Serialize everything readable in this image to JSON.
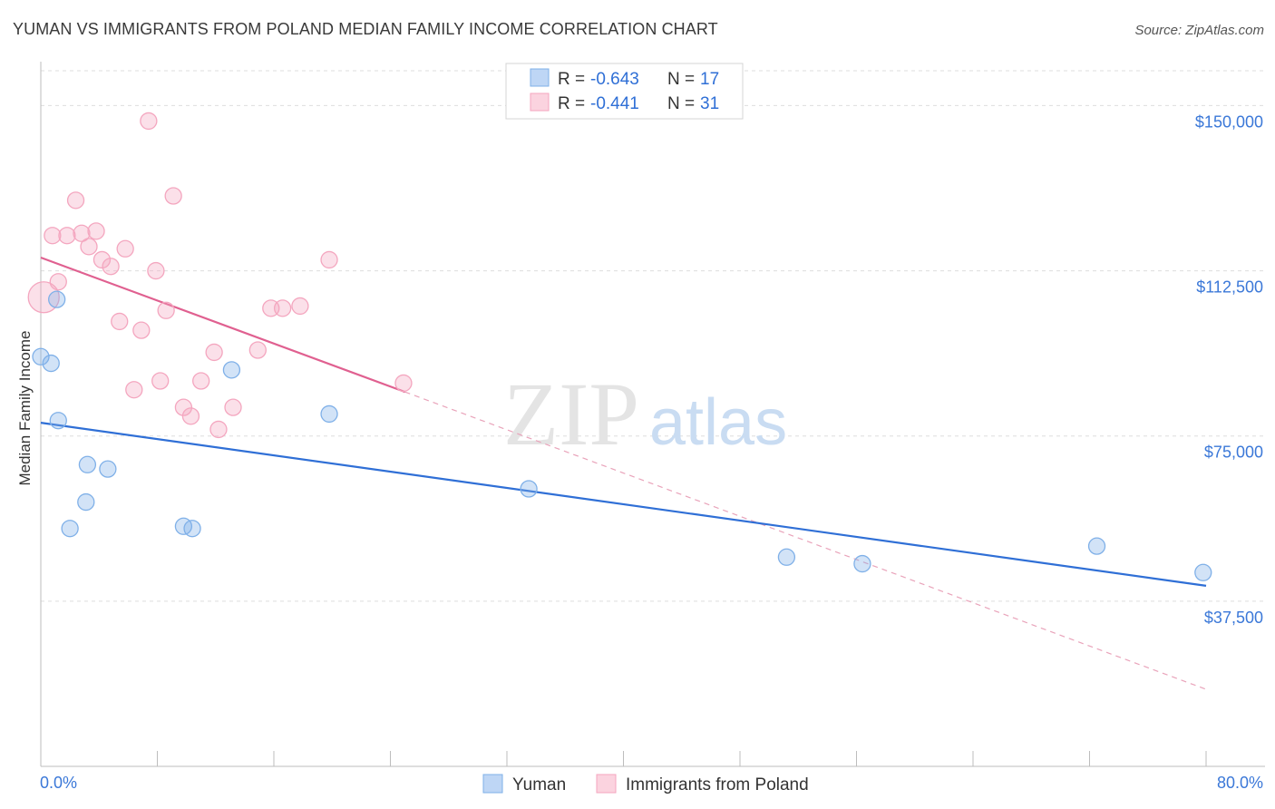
{
  "title": "YUMAN VS IMMIGRANTS FROM POLAND MEDIAN FAMILY INCOME CORRELATION CHART",
  "source": "Source: ZipAtlas.com",
  "watermark": {
    "zip": "ZIP",
    "atlas": "atlas"
  },
  "chart_data": {
    "type": "scatter",
    "title": "YUMAN VS IMMIGRANTS FROM POLAND MEDIAN FAMILY INCOME CORRELATION CHART",
    "xlabel": "",
    "ylabel": "Median Family Income",
    "xlim": [
      0,
      80
    ],
    "ylim": [
      0,
      157500
    ],
    "x_tick_labels": [
      "0.0%",
      "80.0%"
    ],
    "y_ticks": [
      37500,
      75000,
      112500,
      150000
    ],
    "y_tick_labels": [
      "$37,500",
      "$75,000",
      "$112,500",
      "$150,000"
    ],
    "grid": true,
    "legend_position": "top-center",
    "series": [
      {
        "name": "Yuman",
        "color": "#7fb0e8",
        "line_color": "#2f6fd6",
        "R": "-0.643",
        "N": "17",
        "points": [
          [
            0.0,
            93000
          ],
          [
            0.7,
            91500
          ],
          [
            1.1,
            106000
          ],
          [
            1.2,
            78500
          ],
          [
            2.0,
            54000
          ],
          [
            3.1,
            60000
          ],
          [
            3.2,
            68500
          ],
          [
            4.6,
            67500
          ],
          [
            9.8,
            54500
          ],
          [
            10.4,
            54000
          ],
          [
            13.1,
            90000
          ],
          [
            19.8,
            80000
          ],
          [
            33.5,
            63000
          ],
          [
            51.2,
            47500
          ],
          [
            56.4,
            46000
          ],
          [
            72.5,
            50000
          ],
          [
            79.8,
            44000
          ]
        ],
        "trend": {
          "x": [
            0,
            80
          ],
          "y": [
            78000,
            41000
          ]
        }
      },
      {
        "name": "Immigrants from Poland",
        "color": "#f4a6bf",
        "line_color": "#e06090",
        "R": "-0.441",
        "N": "31",
        "points": [
          [
            0.2,
            106500
          ],
          [
            0.8,
            120500
          ],
          [
            1.2,
            110000
          ],
          [
            1.8,
            120500
          ],
          [
            2.4,
            128500
          ],
          [
            2.8,
            121000
          ],
          [
            3.3,
            118000
          ],
          [
            3.8,
            121500
          ],
          [
            4.2,
            115000
          ],
          [
            4.8,
            113500
          ],
          [
            5.4,
            101000
          ],
          [
            5.8,
            117500
          ],
          [
            6.4,
            85500
          ],
          [
            6.9,
            99000
          ],
          [
            7.4,
            146500
          ],
          [
            7.9,
            112500
          ],
          [
            8.2,
            87500
          ],
          [
            8.6,
            103500
          ],
          [
            9.1,
            129500
          ],
          [
            9.8,
            81500
          ],
          [
            10.3,
            79500
          ],
          [
            11.0,
            87500
          ],
          [
            11.9,
            94000
          ],
          [
            12.2,
            76500
          ],
          [
            13.2,
            81500
          ],
          [
            14.9,
            94500
          ],
          [
            15.8,
            104000
          ],
          [
            16.6,
            104000
          ],
          [
            17.8,
            104500
          ],
          [
            19.8,
            115000
          ],
          [
            24.9,
            87000
          ]
        ],
        "trend": {
          "x": [
            0,
            25
          ],
          "y": [
            115500,
            85000
          ]
        },
        "trend_extension": {
          "x": [
            25,
            80
          ],
          "y": [
            85000,
            17500
          ]
        }
      }
    ]
  },
  "legend_top": [
    {
      "r_label": "R =",
      "r_value": "-0.643",
      "n_label": "N =",
      "n_value": "17"
    },
    {
      "r_label": "R =",
      "r_value": "-0.441",
      "n_label": "N =",
      "n_value": "31"
    }
  ],
  "legend_bottom": [
    "Yuman",
    "Immigrants from Poland"
  ]
}
